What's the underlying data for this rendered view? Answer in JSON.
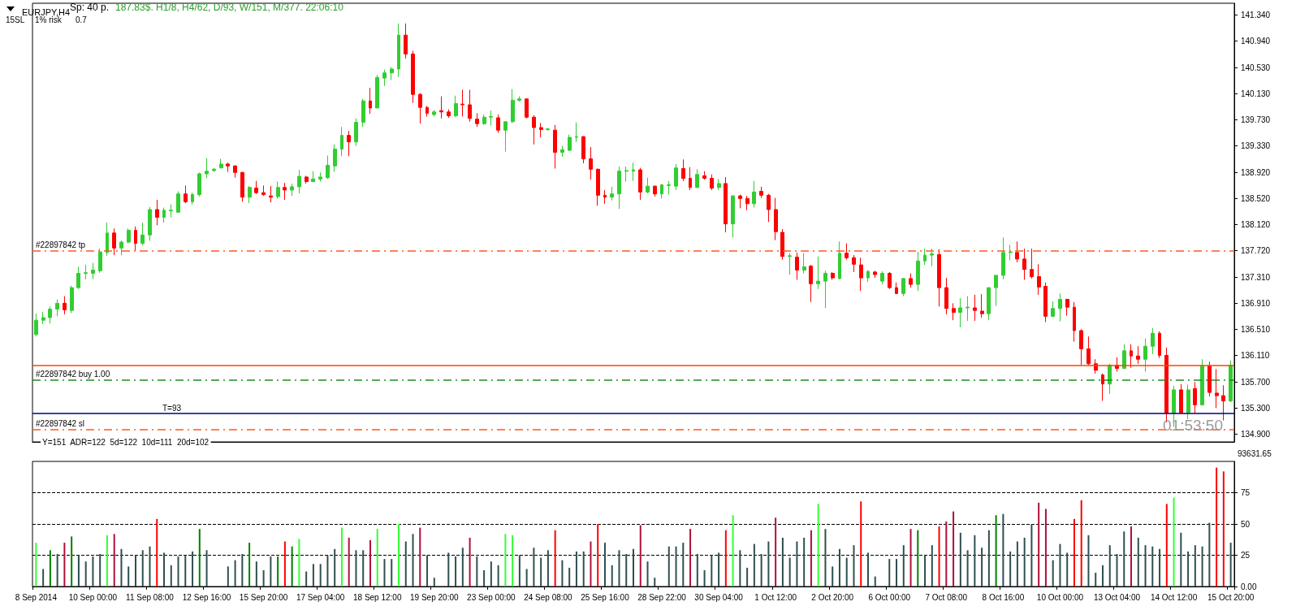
{
  "chart_data": [
    {
      "type": "candlestick",
      "title": "EURJPY,H4",
      "annotations": [
        "Sp: 40 p.",
        "187.83$. H1/8, H4/62, D/93, W/151, M/377. 22:06:10",
        "15SL",
        "1% risk",
        "0.7",
        "Y=151  ADR=122  5d=122  10d=111  20d=102",
        "01:53:50",
        "T=93"
      ],
      "categories": [
        null,
        null,
        null,
        null,
        null,
        null,
        null,
        null,
        null,
        null,
        null,
        null,
        null,
        null,
        null,
        null,
        null,
        null,
        null,
        null,
        null,
        null,
        null,
        null,
        null,
        null,
        null,
        null,
        null,
        null,
        null,
        null,
        null,
        null,
        null,
        null,
        null,
        null,
        null,
        null,
        null,
        null,
        null,
        null,
        null,
        null,
        null,
        null,
        null,
        null,
        null,
        null,
        null,
        null,
        null,
        null,
        null,
        null,
        null,
        null,
        null,
        null,
        null,
        null,
        null,
        null,
        null,
        null,
        null,
        null,
        null,
        null,
        null,
        null,
        null,
        null,
        null,
        null,
        null,
        null,
        null,
        null,
        null,
        null,
        null,
        null,
        null,
        null,
        null,
        null,
        null,
        null,
        null,
        null,
        null,
        null,
        null,
        null,
        null,
        null,
        null,
        null,
        null,
        null,
        null,
        null,
        null,
        null,
        null,
        null,
        null,
        null,
        null,
        null,
        null,
        null,
        null,
        null,
        null,
        null,
        null,
        null,
        null,
        null,
        null,
        null,
        null,
        null,
        null,
        null,
        null,
        null,
        null,
        null,
        null,
        null,
        null,
        null,
        null,
        null,
        null,
        null,
        null,
        null,
        null,
        null,
        null,
        null,
        null,
        null,
        null,
        null,
        null,
        null,
        null,
        null,
        null,
        null,
        null,
        null,
        null,
        null,
        null,
        null,
        null,
        null,
        null,
        null,
        null
      ],
      "ohlc": [
        [
          136.43,
          136.75,
          136.4,
          136.65
        ],
        [
          136.65,
          136.78,
          136.59,
          136.69
        ],
        [
          136.69,
          136.86,
          136.6,
          136.82
        ],
        [
          136.82,
          136.97,
          136.71,
          136.91
        ],
        [
          136.91,
          137.02,
          136.74,
          136.81
        ],
        [
          136.8,
          137.18,
          136.76,
          137.15
        ],
        [
          137.15,
          137.47,
          137.13,
          137.37
        ],
        [
          137.37,
          137.5,
          137.28,
          137.38
        ],
        [
          137.37,
          137.53,
          137.28,
          137.42
        ],
        [
          137.41,
          137.75,
          137.38,
          137.7
        ],
        [
          137.69,
          138.15,
          137.64,
          137.99
        ],
        [
          137.99,
          138.06,
          137.65,
          137.76
        ],
        [
          137.76,
          137.87,
          137.65,
          137.85
        ],
        [
          137.85,
          138.06,
          137.83,
          138.03
        ],
        [
          138.03,
          138.09,
          137.72,
          137.83
        ],
        [
          137.83,
          138.15,
          137.8,
          137.96
        ],
        [
          137.96,
          138.39,
          137.87,
          138.35
        ],
        [
          138.35,
          138.5,
          138.11,
          138.23
        ],
        [
          138.23,
          138.38,
          138.15,
          138.34
        ],
        [
          138.33,
          138.43,
          138.23,
          138.34
        ],
        [
          138.31,
          138.63,
          138.3,
          138.59
        ],
        [
          138.59,
          138.72,
          138.45,
          138.47
        ],
        [
          138.47,
          138.61,
          138.43,
          138.58
        ],
        [
          138.58,
          138.92,
          138.55,
          138.9
        ],
        [
          138.9,
          139.14,
          138.83,
          138.94
        ],
        [
          138.95,
          138.99,
          138.93,
          138.97
        ],
        [
          138.99,
          139.13,
          138.98,
          139.05
        ],
        [
          139.05,
          139.07,
          138.93,
          139.02
        ],
        [
          139.02,
          139.03,
          138.84,
          138.92
        ],
        [
          138.92,
          138.93,
          138.47,
          138.54
        ],
        [
          138.54,
          138.71,
          138.45,
          138.69
        ],
        [
          138.68,
          138.79,
          138.59,
          138.61
        ],
        [
          138.61,
          138.72,
          138.56,
          138.58
        ],
        [
          138.56,
          138.71,
          138.46,
          138.54
        ],
        [
          138.55,
          138.78,
          138.52,
          138.69
        ],
        [
          138.69,
          138.76,
          138.5,
          138.65
        ],
        [
          138.65,
          138.75,
          138.56,
          138.7
        ],
        [
          138.7,
          138.96,
          138.6,
          138.86
        ],
        [
          138.85,
          138.87,
          138.75,
          138.78
        ],
        [
          138.78,
          138.94,
          138.77,
          138.82
        ],
        [
          138.82,
          138.92,
          138.78,
          138.85
        ],
        [
          138.84,
          139.18,
          138.82,
          139.03
        ],
        [
          139.02,
          139.35,
          138.93,
          139.28
        ],
        [
          139.28,
          139.62,
          139.17,
          139.49
        ],
        [
          139.49,
          139.56,
          139.17,
          139.39
        ],
        [
          139.39,
          139.75,
          139.33,
          139.69
        ],
        [
          139.69,
          140.05,
          139.62,
          140.02
        ],
        [
          140.02,
          140.22,
          139.82,
          139.91
        ],
        [
          139.91,
          140.42,
          139.91,
          140.38
        ],
        [
          140.37,
          140.5,
          140.25,
          140.45
        ],
        [
          140.45,
          140.54,
          140.34,
          140.51
        ],
        [
          140.51,
          141.21,
          140.39,
          141.03
        ],
        [
          141.03,
          141.21,
          140.67,
          140.74
        ],
        [
          140.74,
          140.79,
          139.99,
          140.12
        ],
        [
          140.12,
          140.14,
          139.67,
          139.92
        ],
        [
          139.92,
          139.94,
          139.78,
          139.83
        ],
        [
          139.81,
          139.88,
          139.78,
          139.85
        ],
        [
          139.87,
          140.09,
          139.75,
          139.85
        ],
        [
          139.85,
          139.89,
          139.76,
          139.79
        ],
        [
          139.79,
          140.1,
          139.77,
          139.98
        ],
        [
          139.97,
          140.19,
          139.78,
          139.96
        ],
        [
          139.96,
          140.19,
          139.7,
          139.75
        ],
        [
          139.74,
          139.83,
          139.62,
          139.67
        ],
        [
          139.67,
          139.81,
          139.65,
          139.77
        ],
        [
          139.77,
          139.87,
          139.64,
          139.78
        ],
        [
          139.76,
          139.81,
          139.53,
          139.57
        ],
        [
          139.57,
          139.7,
          139.24,
          139.7
        ],
        [
          139.7,
          140.2,
          139.68,
          140.03
        ],
        [
          140.03,
          140.09,
          140.01,
          140.05
        ],
        [
          140.05,
          140.06,
          139.75,
          139.77
        ],
        [
          139.77,
          139.8,
          139.35,
          139.61
        ],
        [
          139.61,
          139.68,
          139.46,
          139.58
        ],
        [
          139.58,
          139.6,
          139.56,
          139.59
        ],
        [
          139.57,
          139.65,
          138.98,
          139.23
        ],
        [
          139.23,
          139.33,
          139.16,
          139.27
        ],
        [
          139.26,
          139.5,
          139.25,
          139.46
        ],
        [
          139.46,
          139.69,
          139.39,
          139.47
        ],
        [
          139.47,
          139.48,
          139.06,
          139.13
        ],
        [
          139.13,
          139.31,
          138.81,
          138.97
        ],
        [
          138.97,
          138.98,
          138.41,
          138.57
        ],
        [
          138.57,
          138.65,
          138.44,
          138.54
        ],
        [
          138.54,
          138.7,
          138.49,
          138.59
        ],
        [
          138.59,
          139.01,
          138.36,
          138.94
        ],
        [
          138.94,
          139.01,
          138.78,
          138.95
        ],
        [
          138.94,
          139.07,
          138.79,
          138.96
        ],
        [
          138.96,
          138.99,
          138.5,
          138.62
        ],
        [
          138.62,
          138.84,
          138.6,
          138.71
        ],
        [
          138.71,
          138.72,
          138.55,
          138.59
        ],
        [
          138.59,
          138.74,
          138.52,
          138.73
        ],
        [
          138.72,
          138.79,
          138.58,
          138.73
        ],
        [
          138.71,
          139.05,
          138.65,
          138.99
        ],
        [
          138.98,
          139.12,
          138.79,
          138.83
        ],
        [
          138.83,
          139.0,
          138.65,
          138.69
        ],
        [
          138.69,
          138.97,
          138.68,
          138.89
        ],
        [
          138.87,
          138.94,
          138.81,
          138.83
        ],
        [
          138.83,
          138.89,
          138.65,
          138.68
        ],
        [
          138.69,
          138.82,
          138.65,
          138.75
        ],
        [
          138.75,
          138.85,
          138.0,
          138.13
        ],
        [
          138.13,
          138.57,
          137.92,
          138.56
        ],
        [
          138.56,
          138.58,
          138.37,
          138.52
        ],
        [
          138.52,
          138.56,
          138.34,
          138.44
        ],
        [
          138.44,
          138.79,
          138.38,
          138.62
        ],
        [
          138.63,
          138.7,
          138.53,
          138.57
        ],
        [
          138.57,
          138.59,
          138.16,
          138.35
        ],
        [
          138.35,
          138.53,
          137.88,
          138.01
        ],
        [
          138.0,
          138.05,
          137.58,
          137.63
        ],
        [
          137.63,
          137.68,
          137.35,
          137.64
        ],
        [
          137.62,
          137.69,
          137.27,
          137.42
        ],
        [
          137.42,
          137.68,
          137.37,
          137.47
        ],
        [
          137.48,
          137.5,
          136.93,
          137.21
        ],
        [
          137.21,
          137.63,
          137.13,
          137.25
        ],
        [
          137.25,
          137.41,
          136.84,
          137.37
        ],
        [
          137.37,
          137.39,
          137.27,
          137.3
        ],
        [
          137.29,
          137.86,
          137.28,
          137.68
        ],
        [
          137.68,
          137.83,
          137.58,
          137.61
        ],
        [
          137.61,
          137.65,
          137.39,
          137.51
        ],
        [
          137.5,
          137.61,
          137.1,
          137.3
        ],
        [
          137.3,
          137.42,
          137.24,
          137.4
        ],
        [
          137.39,
          137.41,
          137.3,
          137.35
        ],
        [
          137.25,
          137.4,
          137.2,
          137.37
        ],
        [
          137.37,
          137.39,
          137.13,
          137.15
        ],
        [
          137.15,
          137.23,
          137.05,
          137.06
        ],
        [
          137.06,
          137.3,
          137.02,
          137.29
        ],
        [
          137.29,
          137.37,
          137.15,
          137.2
        ],
        [
          137.2,
          137.7,
          137.1,
          137.56
        ],
        [
          137.56,
          137.75,
          137.5,
          137.65
        ],
        [
          137.65,
          137.75,
          137.48,
          137.67
        ],
        [
          137.66,
          137.74,
          136.86,
          137.15
        ],
        [
          137.15,
          137.3,
          136.74,
          136.83
        ],
        [
          136.83,
          136.91,
          136.65,
          136.77
        ],
        [
          136.77,
          136.99,
          136.54,
          136.84
        ],
        [
          136.84,
          137.02,
          136.64,
          136.85
        ],
        [
          136.84,
          137.04,
          136.64,
          136.8
        ],
        [
          136.79,
          137.05,
          136.69,
          136.75
        ],
        [
          136.75,
          137.15,
          136.65,
          137.15
        ],
        [
          137.15,
          137.34,
          136.87,
          137.34
        ],
        [
          137.34,
          137.92,
          137.28,
          137.69
        ],
        [
          137.69,
          137.81,
          137.57,
          137.7
        ],
        [
          137.69,
          137.86,
          137.54,
          137.59
        ],
        [
          137.59,
          137.75,
          137.27,
          137.43
        ],
        [
          137.43,
          137.75,
          137.29,
          137.32
        ],
        [
          137.32,
          137.51,
          137.04,
          137.16
        ],
        [
          137.17,
          137.23,
          136.62,
          136.71
        ],
        [
          136.71,
          136.94,
          136.7,
          136.83
        ],
        [
          136.83,
          137.06,
          136.63,
          136.97
        ],
        [
          136.97,
          136.98,
          136.72,
          136.85
        ],
        [
          136.85,
          136.93,
          136.32,
          136.49
        ],
        [
          136.49,
          136.51,
          135.96,
          136.21
        ],
        [
          136.21,
          136.4,
          135.96,
          135.98
        ],
        [
          135.98,
          136.05,
          135.83,
          135.88
        ],
        [
          135.81,
          135.83,
          135.41,
          135.67
        ],
        [
          135.67,
          135.98,
          135.52,
          135.96
        ],
        [
          135.96,
          136.08,
          135.86,
          135.91
        ],
        [
          135.91,
          136.28,
          135.9,
          136.18
        ],
        [
          136.18,
          136.28,
          135.92,
          136.1
        ],
        [
          136.1,
          136.25,
          135.98,
          136.05
        ],
        [
          136.05,
          136.37,
          135.86,
          136.25
        ],
        [
          136.25,
          136.53,
          136.13,
          136.45
        ],
        [
          136.45,
          136.48,
          136.07,
          136.11
        ],
        [
          136.11,
          136.23,
          135.08,
          135.22
        ],
        [
          135.22,
          135.64,
          135.01,
          135.58
        ],
        [
          135.58,
          135.67,
          135.22,
          135.23
        ],
        [
          135.23,
          135.66,
          135.13,
          135.58
        ],
        [
          135.6,
          135.7,
          135.22,
          135.35
        ],
        [
          135.35,
          136.05,
          135.34,
          135.95
        ],
        [
          135.95,
          136.01,
          135.48,
          135.54
        ],
        [
          135.53,
          135.9,
          135.3,
          135.49
        ],
        [
          135.49,
          135.65,
          135.11,
          135.41
        ],
        [
          135.41,
          136.03,
          135.39,
          135.96
        ]
      ],
      "colors": [
        "#32cd32",
        "#32cd32",
        "#32cd32",
        "#32cd32",
        "#ff0000",
        "#32cd32",
        "#32cd32",
        "#32cd32",
        "#32cd32",
        "#32cd32",
        "#32cd32",
        "#ff0000",
        "#32cd32",
        "#32cd32",
        "#ff0000",
        "#32cd32",
        "#32cd32",
        "#ff0000",
        "#32cd32",
        "#32cd32",
        "#32cd32",
        "#ff0000",
        "#32cd32",
        "#32cd32",
        "#32cd32",
        "#32cd32",
        "#32cd32",
        "#ff0000",
        "#ff0000",
        "#ff0000",
        "#32cd32",
        "#ff0000",
        "#ff0000",
        "#ff0000",
        "#32cd32",
        "#ff0000",
        "#32cd32",
        "#32cd32",
        "#ff0000",
        "#32cd32",
        "#32cd32",
        "#32cd32",
        "#32cd32",
        "#32cd32",
        "#ff0000",
        "#32cd32",
        "#32cd32",
        "#ff0000",
        "#32cd32",
        "#32cd32",
        "#32cd32",
        "#32cd32",
        "#ff0000",
        "#ff0000",
        "#ff0000",
        "#ff0000",
        "#32cd32",
        "#ff0000",
        "#ff0000",
        "#32cd32",
        "#ff0000",
        "#ff0000",
        "#ff0000",
        "#32cd32",
        "#32cd32",
        "#ff0000",
        "#32cd32",
        "#32cd32",
        "#32cd32",
        "#ff0000",
        "#ff0000",
        "#ff0000",
        "#32cd32",
        "#ff0000",
        "#32cd32",
        "#32cd32",
        "#32cd32",
        "#ff0000",
        "#ff0000",
        "#ff0000",
        "#ff0000",
        "#32cd32",
        "#32cd32",
        "#32cd32",
        "#32cd32",
        "#ff0000",
        "#32cd32",
        "#ff0000",
        "#32cd32",
        "#32cd32",
        "#32cd32",
        "#ff0000",
        "#ff0000",
        "#32cd32",
        "#ff0000",
        "#ff0000",
        "#32cd32",
        "#ff0000",
        "#32cd32",
        "#ff0000",
        "#ff0000",
        "#32cd32",
        "#ff0000",
        "#ff0000",
        "#ff0000",
        "#ff0000",
        "#32cd32",
        "#ff0000",
        "#32cd32",
        "#ff0000",
        "#32cd32",
        "#32cd32",
        "#ff0000",
        "#32cd32",
        "#ff0000",
        "#ff0000",
        "#ff0000",
        "#32cd32",
        "#ff0000",
        "#32cd32",
        "#ff0000",
        "#ff0000",
        "#32cd32",
        "#ff0000",
        "#32cd32",
        "#32cd32",
        "#32cd32",
        "#ff0000",
        "#ff0000",
        "#ff0000",
        "#32cd32",
        "#32cd32",
        "#ff0000",
        "#ff0000",
        "#32cd32",
        "#32cd32",
        "#32cd32",
        "#32cd32",
        "#ff0000",
        "#ff0000",
        "#ff0000",
        "#ff0000",
        "#ff0000",
        "#32cd32",
        "#32cd32",
        "#ff0000",
        "#ff0000",
        "#ff0000",
        "#ff0000",
        "#ff0000",
        "#ff0000",
        "#32cd32",
        "#ff0000",
        "#32cd32",
        "#ff0000",
        "#ff0000",
        "#32cd32",
        "#32cd32",
        "#ff0000",
        "#ff0000",
        "#32cd32",
        "#ff0000",
        "#32cd32",
        "#ff0000",
        "#32cd32",
        "#ff0000",
        "#ff0000",
        "#ff0000",
        "#32cd32"
      ],
      "ylim": [
        134.78,
        141.52
      ],
      "yticks": [
        {
          "value": 134.9,
          "label": "134.900"
        },
        {
          "value": 135.3,
          "label": "135.300"
        },
        {
          "value": 135.7,
          "label": "135.700"
        },
        {
          "value": 136.11,
          "label": "136.110"
        },
        {
          "value": 136.51,
          "label": "136.510"
        },
        {
          "value": 136.91,
          "label": "136.910"
        },
        {
          "value": 137.31,
          "label": "137.310"
        },
        {
          "value": 137.72,
          "label": "137.720"
        },
        {
          "value": 138.12,
          "label": "138.120"
        },
        {
          "value": 138.52,
          "label": "138.520"
        },
        {
          "value": 138.92,
          "label": "138.920"
        },
        {
          "value": 139.33,
          "label": "139.330"
        },
        {
          "value": 139.73,
          "label": "139.730"
        },
        {
          "value": 140.13,
          "label": "140.130"
        },
        {
          "value": 140.53,
          "label": "140.530"
        },
        {
          "value": 140.94,
          "label": "140.940"
        },
        {
          "value": 141.34,
          "label": "141.340"
        }
      ],
      "ref_lines": [
        {
          "axis": "y",
          "value": 137.72,
          "label": "#22897842 tp",
          "color": "#ff5a1f",
          "line_style": "dashed"
        },
        {
          "axis": "y",
          "value": 135.956,
          "color": "#ff4500",
          "line_style": "solid"
        },
        {
          "axis": "y",
          "value": 135.73,
          "label": "#22897842 buy 1.00",
          "color": "#1a8f1a",
          "line_style": "dashed"
        },
        {
          "axis": "y",
          "value": 135.223,
          "color": "#000080",
          "line_style": "solid"
        },
        {
          "axis": "y",
          "value": 134.975,
          "label": "#22897842 sl",
          "color": "#ff5a1f",
          "line_style": "dashed"
        }
      ]
    },
    {
      "type": "bar",
      "grid": "y",
      "annotations": [
        "93631.65"
      ],
      "categories": [
        "8 Sep 2014",
        null,
        null,
        null,
        null,
        null,
        null,
        null,
        "10 Sep 00:00",
        null,
        null,
        null,
        null,
        null,
        null,
        null,
        "11 Sep 08:00",
        null,
        null,
        null,
        null,
        null,
        null,
        null,
        "12 Sep 16:00",
        null,
        null,
        null,
        null,
        null,
        null,
        null,
        "15 Sep 20:00",
        null,
        null,
        null,
        null,
        null,
        null,
        null,
        "17 Sep 04:00",
        null,
        null,
        null,
        null,
        null,
        null,
        null,
        "18 Sep 12:00",
        null,
        null,
        null,
        null,
        null,
        null,
        null,
        "19 Sep 20:00",
        null,
        null,
        null,
        null,
        null,
        null,
        null,
        "23 Sep 00:00",
        null,
        null,
        null,
        null,
        null,
        null,
        null,
        "24 Sep 08:00",
        null,
        null,
        null,
        null,
        null,
        null,
        null,
        "25 Sep 16:00",
        null,
        null,
        null,
        null,
        null,
        null,
        null,
        "28 Sep 22:00",
        null,
        null,
        null,
        null,
        null,
        null,
        null,
        "30 Sep 04:00",
        null,
        null,
        null,
        null,
        null,
        null,
        null,
        "1 Oct 12:00",
        null,
        null,
        null,
        null,
        null,
        null,
        null,
        "2 Oct 20:00",
        null,
        null,
        null,
        null,
        null,
        null,
        null,
        "6 Oct 00:00",
        null,
        null,
        null,
        null,
        null,
        null,
        null,
        "7 Oct 08:00",
        null,
        null,
        null,
        null,
        null,
        null,
        null,
        "8 Oct 16:00",
        null,
        null,
        null,
        null,
        null,
        null,
        null,
        "10 Oct 00:00",
        null,
        null,
        null,
        null,
        null,
        null,
        null,
        "13 Oct 04:00",
        null,
        null,
        null,
        null,
        null,
        null,
        null,
        "14 Oct 12:00",
        null,
        null,
        null,
        null,
        null,
        null,
        null,
        "15 Oct 20:00"
      ],
      "values": [
        35,
        14,
        29,
        26,
        35,
        40,
        25,
        20,
        24,
        26,
        41,
        42,
        30,
        16,
        25,
        29,
        32,
        54,
        27,
        17,
        24,
        25,
        28,
        46,
        29,
        null,
        null,
        16,
        21,
        26,
        35,
        20,
        13,
        24,
        24,
        36,
        32,
        38,
        12,
        18,
        18,
        25,
        30,
        47,
        39,
        29,
        29,
        37,
        46,
        22,
        22,
        50,
        36,
        42,
        47,
        25,
        7,
        null,
        27,
        24,
        31,
        39,
        24,
        13,
        20,
        17,
        42,
        41,
        25,
        14,
        31,
        23,
        29,
        45,
        21,
        15,
        28,
        28,
        36,
        50,
        35,
        17,
        29,
        26,
        30,
        49,
        20,
        7,
        null,
        32,
        32,
        35,
        46,
        26,
        13,
        25,
        27,
        45,
        57,
        29,
        15,
        34,
        26,
        36,
        55,
        39,
        23,
        36,
        39,
        45,
        66,
        46,
        16,
        30,
        23,
        33,
        68,
        27,
        8,
        null,
        22,
        22,
        33,
        46,
        45,
        25,
        33,
        48,
        52,
        60,
        43,
        29,
        41,
        31,
        45,
        57,
        58,
        28,
        36,
        39,
        50,
        67,
        62,
        21,
        34,
        27,
        54,
        69,
        41,
        11,
        17,
        33,
        26,
        44,
        48,
        39,
        33,
        32,
        30,
        66,
        71,
        43,
        28,
        33,
        32,
        51,
        95,
        92,
        35
      ],
      "colors": [
        "#33ff33",
        "#2f4f4f",
        "#008000",
        "#2f4f4f",
        "#b0103a",
        "#008000",
        "#2f4f4f",
        "#2f4f4f",
        "#2f4f4f",
        "#2f4f4f",
        "#33ff33",
        "#b0103a",
        "#2f4f4f",
        "#2f4f4f",
        "#2f4f4f",
        "#2f4f4f",
        "#2f4f4f",
        "#ff0000",
        "#2f4f4f",
        "#2f4f4f",
        "#2f4f4f",
        "#2f4f4f",
        "#2f4f4f",
        "#008000",
        "#2f4f4f",
        "#2f4f4f",
        "#2f4f4f",
        "#2f4f4f",
        "#2f4f4f",
        "#2f4f4f",
        "#008000",
        "#2f4f4f",
        "#2f4f4f",
        "#2f4f4f",
        "#008000",
        "#ff0000",
        "#008000",
        "#33ff33",
        "#2f4f4f",
        "#2f4f4f",
        "#2f4f4f",
        "#2f4f4f",
        "#2f4f4f",
        "#33ff33",
        "#b0103a",
        "#2f4f4f",
        "#2f4f4f",
        "#b0103a",
        "#33ff33",
        "#2f4f4f",
        "#2f4f4f",
        "#33ff33",
        "#2f4f4f",
        "#2f4f4f",
        "#b0103a",
        "#2f4f4f",
        "#2f4f4f",
        "#2f4f4f",
        "#2f4f4f",
        "#2f4f4f",
        "#2f4f4f",
        "#b0103a",
        "#2f4f4f",
        "#2f4f4f",
        "#2f4f4f",
        "#2f4f4f",
        "#33ff33",
        "#33ff33",
        "#2f4f4f",
        "#2f4f4f",
        "#2f4f4f",
        "#2f4f4f",
        "#2f4f4f",
        "#ff0000",
        "#2f4f4f",
        "#2f4f4f",
        "#2f4f4f",
        "#2f4f4f",
        "#b0103a",
        "#ff0000",
        "#2f4f4f",
        "#2f4f4f",
        "#2f4f4f",
        "#2f4f4f",
        "#2f4f4f",
        "#b0103a",
        "#2f4f4f",
        "#2f4f4f",
        "#2f4f4f",
        "#2f4f4f",
        "#2f4f4f",
        "#2f4f4f",
        "#b0103a",
        "#2f4f4f",
        "#2f4f4f",
        "#2f4f4f",
        "#2f4f4f",
        "#ff0000",
        "#33ff33",
        "#2f4f4f",
        "#2f4f4f",
        "#2f4f4f",
        "#2f4f4f",
        "#2f4f4f",
        "#b0103a",
        "#2f4f4f",
        "#2f4f4f",
        "#2f4f4f",
        "#2f4f4f",
        "#b0103a",
        "#33ff33",
        "#2f4f4f",
        "#2f4f4f",
        "#2f4f4f",
        "#2f4f4f",
        "#2f4f4f",
        "#ff0000",
        "#2f4f4f",
        "#2f4f4f",
        "#2f4f4f",
        "#2f4f4f",
        "#2f4f4f",
        "#2f4f4f",
        "#b0103a",
        "#008000",
        "#2f4f4f",
        "#2f4f4f",
        "#ff0000",
        "#b0103a",
        "#b0103a",
        "#2f4f4f",
        "#2f4f4f",
        "#2f4f4f",
        "#2f4f4f",
        "#2f4f4f",
        "#008000",
        "#2f4f4f",
        "#2f4f4f",
        "#2f4f4f",
        "#2f4f4f",
        "#2f4f4f",
        "#b0103a",
        "#b0103a",
        "#2f4f4f",
        "#2f4f4f",
        "#2f4f4f",
        "#ff0000",
        "#ff0000",
        "#2f4f4f",
        "#2f4f4f",
        "#2f4f4f",
        "#2f4f4f",
        "#2f4f4f",
        "#2f4f4f",
        "#b0103a",
        "#2f4f4f",
        "#2f4f4f",
        "#2f4f4f",
        "#2f4f4f",
        "#ff0000",
        "#33ff33",
        "#2f4f4f",
        "#2f4f4f",
        "#2f4f4f",
        "#2f4f4f",
        "#2f4f4f",
        "#ff0000",
        "#ff0000",
        "#2f4f4f"
      ],
      "ylim": [
        0,
        100
      ],
      "yticks": [
        {
          "value": 0,
          "label": "0.00"
        },
        25,
        50,
        75
      ]
    }
  ]
}
